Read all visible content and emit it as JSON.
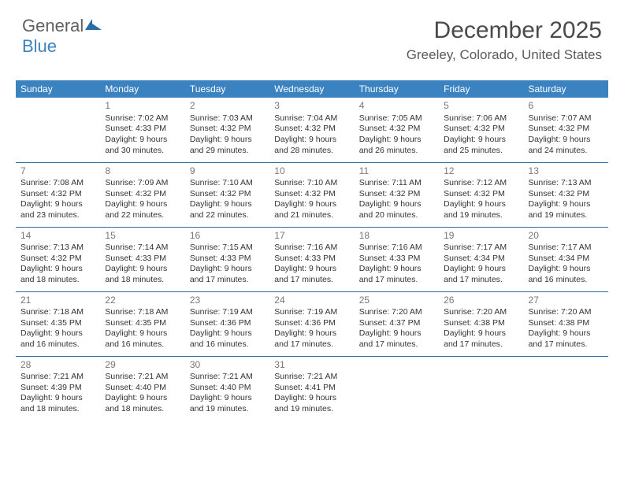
{
  "logo": {
    "text1": "General",
    "text2": "Blue"
  },
  "header": {
    "title": "December 2025",
    "location": "Greeley, Colorado, United States"
  },
  "colors": {
    "header_bg": "#3b83c0",
    "header_text": "#ffffff",
    "cell_border": "#2a6ca8",
    "daynum": "#777777",
    "body_text": "#333333"
  },
  "dayNames": [
    "Sunday",
    "Monday",
    "Tuesday",
    "Wednesday",
    "Thursday",
    "Friday",
    "Saturday"
  ],
  "weeks": [
    [
      null,
      {
        "n": "1",
        "sr": "Sunrise: 7:02 AM",
        "ss": "Sunset: 4:33 PM",
        "d1": "Daylight: 9 hours",
        "d2": "and 30 minutes."
      },
      {
        "n": "2",
        "sr": "Sunrise: 7:03 AM",
        "ss": "Sunset: 4:32 PM",
        "d1": "Daylight: 9 hours",
        "d2": "and 29 minutes."
      },
      {
        "n": "3",
        "sr": "Sunrise: 7:04 AM",
        "ss": "Sunset: 4:32 PM",
        "d1": "Daylight: 9 hours",
        "d2": "and 28 minutes."
      },
      {
        "n": "4",
        "sr": "Sunrise: 7:05 AM",
        "ss": "Sunset: 4:32 PM",
        "d1": "Daylight: 9 hours",
        "d2": "and 26 minutes."
      },
      {
        "n": "5",
        "sr": "Sunrise: 7:06 AM",
        "ss": "Sunset: 4:32 PM",
        "d1": "Daylight: 9 hours",
        "d2": "and 25 minutes."
      },
      {
        "n": "6",
        "sr": "Sunrise: 7:07 AM",
        "ss": "Sunset: 4:32 PM",
        "d1": "Daylight: 9 hours",
        "d2": "and 24 minutes."
      }
    ],
    [
      {
        "n": "7",
        "sr": "Sunrise: 7:08 AM",
        "ss": "Sunset: 4:32 PM",
        "d1": "Daylight: 9 hours",
        "d2": "and 23 minutes."
      },
      {
        "n": "8",
        "sr": "Sunrise: 7:09 AM",
        "ss": "Sunset: 4:32 PM",
        "d1": "Daylight: 9 hours",
        "d2": "and 22 minutes."
      },
      {
        "n": "9",
        "sr": "Sunrise: 7:10 AM",
        "ss": "Sunset: 4:32 PM",
        "d1": "Daylight: 9 hours",
        "d2": "and 22 minutes."
      },
      {
        "n": "10",
        "sr": "Sunrise: 7:10 AM",
        "ss": "Sunset: 4:32 PM",
        "d1": "Daylight: 9 hours",
        "d2": "and 21 minutes."
      },
      {
        "n": "11",
        "sr": "Sunrise: 7:11 AM",
        "ss": "Sunset: 4:32 PM",
        "d1": "Daylight: 9 hours",
        "d2": "and 20 minutes."
      },
      {
        "n": "12",
        "sr": "Sunrise: 7:12 AM",
        "ss": "Sunset: 4:32 PM",
        "d1": "Daylight: 9 hours",
        "d2": "and 19 minutes."
      },
      {
        "n": "13",
        "sr": "Sunrise: 7:13 AM",
        "ss": "Sunset: 4:32 PM",
        "d1": "Daylight: 9 hours",
        "d2": "and 19 minutes."
      }
    ],
    [
      {
        "n": "14",
        "sr": "Sunrise: 7:13 AM",
        "ss": "Sunset: 4:32 PM",
        "d1": "Daylight: 9 hours",
        "d2": "and 18 minutes."
      },
      {
        "n": "15",
        "sr": "Sunrise: 7:14 AM",
        "ss": "Sunset: 4:33 PM",
        "d1": "Daylight: 9 hours",
        "d2": "and 18 minutes."
      },
      {
        "n": "16",
        "sr": "Sunrise: 7:15 AM",
        "ss": "Sunset: 4:33 PM",
        "d1": "Daylight: 9 hours",
        "d2": "and 17 minutes."
      },
      {
        "n": "17",
        "sr": "Sunrise: 7:16 AM",
        "ss": "Sunset: 4:33 PM",
        "d1": "Daylight: 9 hours",
        "d2": "and 17 minutes."
      },
      {
        "n": "18",
        "sr": "Sunrise: 7:16 AM",
        "ss": "Sunset: 4:33 PM",
        "d1": "Daylight: 9 hours",
        "d2": "and 17 minutes."
      },
      {
        "n": "19",
        "sr": "Sunrise: 7:17 AM",
        "ss": "Sunset: 4:34 PM",
        "d1": "Daylight: 9 hours",
        "d2": "and 17 minutes."
      },
      {
        "n": "20",
        "sr": "Sunrise: 7:17 AM",
        "ss": "Sunset: 4:34 PM",
        "d1": "Daylight: 9 hours",
        "d2": "and 16 minutes."
      }
    ],
    [
      {
        "n": "21",
        "sr": "Sunrise: 7:18 AM",
        "ss": "Sunset: 4:35 PM",
        "d1": "Daylight: 9 hours",
        "d2": "and 16 minutes."
      },
      {
        "n": "22",
        "sr": "Sunrise: 7:18 AM",
        "ss": "Sunset: 4:35 PM",
        "d1": "Daylight: 9 hours",
        "d2": "and 16 minutes."
      },
      {
        "n": "23",
        "sr": "Sunrise: 7:19 AM",
        "ss": "Sunset: 4:36 PM",
        "d1": "Daylight: 9 hours",
        "d2": "and 16 minutes."
      },
      {
        "n": "24",
        "sr": "Sunrise: 7:19 AM",
        "ss": "Sunset: 4:36 PM",
        "d1": "Daylight: 9 hours",
        "d2": "and 17 minutes."
      },
      {
        "n": "25",
        "sr": "Sunrise: 7:20 AM",
        "ss": "Sunset: 4:37 PM",
        "d1": "Daylight: 9 hours",
        "d2": "and 17 minutes."
      },
      {
        "n": "26",
        "sr": "Sunrise: 7:20 AM",
        "ss": "Sunset: 4:38 PM",
        "d1": "Daylight: 9 hours",
        "d2": "and 17 minutes."
      },
      {
        "n": "27",
        "sr": "Sunrise: 7:20 AM",
        "ss": "Sunset: 4:38 PM",
        "d1": "Daylight: 9 hours",
        "d2": "and 17 minutes."
      }
    ],
    [
      {
        "n": "28",
        "sr": "Sunrise: 7:21 AM",
        "ss": "Sunset: 4:39 PM",
        "d1": "Daylight: 9 hours",
        "d2": "and 18 minutes."
      },
      {
        "n": "29",
        "sr": "Sunrise: 7:21 AM",
        "ss": "Sunset: 4:40 PM",
        "d1": "Daylight: 9 hours",
        "d2": "and 18 minutes."
      },
      {
        "n": "30",
        "sr": "Sunrise: 7:21 AM",
        "ss": "Sunset: 4:40 PM",
        "d1": "Daylight: 9 hours",
        "d2": "and 19 minutes."
      },
      {
        "n": "31",
        "sr": "Sunrise: 7:21 AM",
        "ss": "Sunset: 4:41 PM",
        "d1": "Daylight: 9 hours",
        "d2": "and 19 minutes."
      },
      null,
      null,
      null
    ]
  ]
}
